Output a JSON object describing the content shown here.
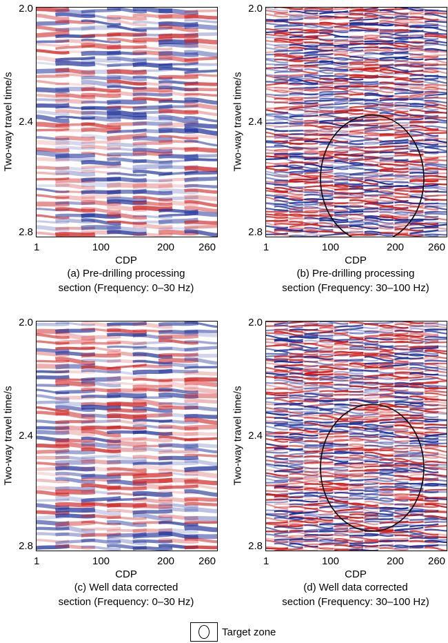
{
  "chart_data": [
    {
      "id": "a",
      "type": "heatmap",
      "xlabel": "CDP",
      "ylabel": "Two-way travel time/s",
      "xticks": [
        "1",
        "100",
        "200",
        "260"
      ],
      "yticks": [
        "2.0",
        "2.4",
        "2.8"
      ],
      "xlim": [
        1,
        260
      ],
      "ylim": [
        2.8,
        2.0
      ],
      "caption": [
        "(a) Pre-drilling processing",
        "section (Frequency: 0–30 Hz)"
      ],
      "colormap": [
        "#1a2e9a",
        "#ffffff",
        "#d01c1c"
      ],
      "target_zone": false,
      "frequency": "low"
    },
    {
      "id": "b",
      "type": "heatmap",
      "xlabel": "CDP",
      "ylabel": "Two-way travel time/s",
      "xticks": [
        "1",
        "100",
        "200",
        "260"
      ],
      "yticks": [
        "2.0",
        "2.4",
        "2.8"
      ],
      "xlim": [
        1,
        260
      ],
      "ylim": [
        2.8,
        2.0
      ],
      "caption": [
        "(b) Pre-drilling processing",
        "section (Frequency: 30–100 Hz)"
      ],
      "colormap": [
        "#1a2e9a",
        "#ffffff",
        "#d01c1c"
      ],
      "target_zone": true,
      "frequency": "high"
    },
    {
      "id": "c",
      "type": "heatmap",
      "xlabel": "CDP",
      "ylabel": "Two-way travel time/s",
      "xticks": [
        "1",
        "100",
        "200",
        "260"
      ],
      "yticks": [
        "2.0",
        "2.4",
        "2.8"
      ],
      "xlim": [
        1,
        260
      ],
      "ylim": [
        2.8,
        2.0
      ],
      "caption": [
        "(c) Well data corrected",
        "section (Frequency: 0–30 Hz)"
      ],
      "colormap": [
        "#1a2e9a",
        "#ffffff",
        "#d01c1c"
      ],
      "target_zone": false,
      "frequency": "low"
    },
    {
      "id": "d",
      "type": "heatmap",
      "xlabel": "CDP",
      "ylabel": "Two-way travel time/s",
      "xticks": [
        "1",
        "100",
        "200",
        "260"
      ],
      "yticks": [
        "2.0",
        "2.4",
        "2.8"
      ],
      "xlim": [
        1,
        260
      ],
      "ylim": [
        2.8,
        2.0
      ],
      "caption": [
        "(d) Well data corrected",
        "section (Frequency: 30–100 Hz)"
      ],
      "colormap": [
        "#1a2e9a",
        "#ffffff",
        "#d01c1c"
      ],
      "target_zone": true,
      "frequency": "high"
    }
  ],
  "legend": {
    "label": "Target zone",
    "icon": "ellipse-outline"
  }
}
